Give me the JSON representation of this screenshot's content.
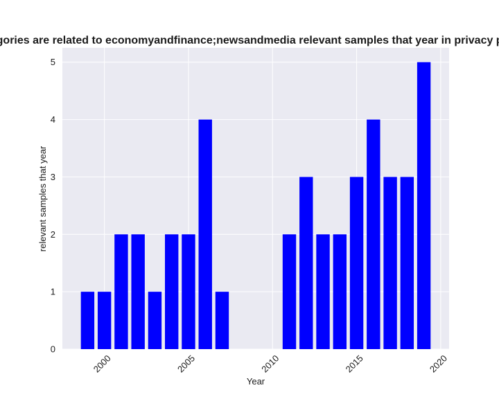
{
  "chart_data": {
    "type": "bar",
    "title": "categories are related to economyandfinance;newsandmedia relevant samples that year in privacy policies",
    "xlabel": "Year",
    "ylabel": "relevant samples that year",
    "x": [
      1999,
      2000,
      2001,
      2002,
      2003,
      2004,
      2005,
      2006,
      2007,
      2011,
      2012,
      2013,
      2014,
      2015,
      2016,
      2017,
      2018,
      2019
    ],
    "values": [
      1,
      1,
      2,
      2,
      1,
      2,
      2,
      4,
      1,
      2,
      3,
      2,
      2,
      3,
      4,
      3,
      3,
      5
    ],
    "xlim": [
      1997.5,
      2020.5
    ],
    "ylim": [
      0,
      5.25
    ],
    "xticks": [
      2000,
      2005,
      2010,
      2015,
      2020
    ],
    "yticks": [
      0,
      1,
      2,
      3,
      4,
      5
    ],
    "bar_color": "#0000ff",
    "plot_background": "#eaeaf2",
    "grid": true
  }
}
